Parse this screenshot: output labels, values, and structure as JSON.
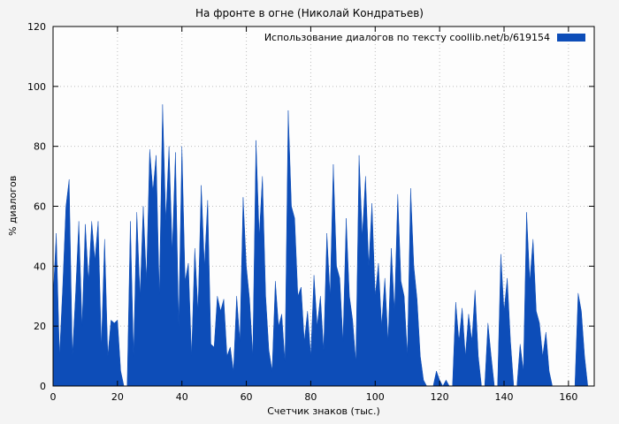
{
  "title": "На фронте в огне (Николай Кондратьев)",
  "legend": {
    "label": "Использование диалогов по тексту coollib.net/b/619154"
  },
  "colors": {
    "series": "#0d4db8",
    "grid": "#bdbdbd",
    "axis": "#000000",
    "page_bg": "#f4f4f4",
    "plot_bg": "#fdfdfd"
  },
  "chart_data": {
    "type": "area",
    "title": "На фронте в огне (Николай Кондратьев)",
    "xlabel": "Счетчик знаков (тыс.)",
    "ylabel": "% диалогов",
    "xlim": [
      0,
      168
    ],
    "ylim": [
      0,
      120
    ],
    "x_ticks": [
      0,
      20,
      40,
      60,
      80,
      100,
      120,
      140,
      160
    ],
    "y_ticks": [
      0,
      20,
      40,
      60,
      80,
      100,
      120
    ],
    "grid": true,
    "legend_position": "top-right",
    "series": [
      {
        "name": "Использование диалогов по тексту coollib.net/b/619154",
        "x_start": 0,
        "x_step": 1,
        "values": [
          29,
          51,
          10,
          33,
          60,
          69,
          10,
          31,
          55,
          20,
          54,
          35,
          55,
          42,
          55,
          13,
          49,
          10,
          22,
          21,
          22,
          5,
          0,
          0,
          55,
          10,
          58,
          30,
          60,
          35,
          79,
          65,
          77,
          30,
          94,
          55,
          80,
          45,
          78,
          20,
          80,
          35,
          41,
          10,
          46,
          25,
          67,
          40,
          62,
          14,
          13,
          30,
          25,
          29,
          10,
          13,
          5,
          30,
          15,
          63,
          40,
          29,
          10,
          82,
          50,
          70,
          30,
          12,
          5,
          35,
          20,
          24,
          8,
          92,
          60,
          56,
          30,
          33,
          15,
          25,
          10,
          37,
          20,
          30,
          12,
          51,
          30,
          74,
          40,
          36,
          15,
          56,
          30,
          22,
          8,
          77,
          50,
          70,
          40,
          61,
          30,
          41,
          20,
          36,
          15,
          46,
          25,
          64,
          35,
          30,
          10,
          66,
          40,
          29,
          10,
          2,
          0,
          0,
          0,
          5,
          2,
          0,
          2,
          0,
          0,
          28,
          15,
          26,
          10,
          24,
          15,
          32,
          10,
          0,
          0,
          21,
          10,
          0,
          0,
          44,
          25,
          36,
          15,
          0,
          0,
          14,
          5,
          58,
          35,
          49,
          25,
          21,
          10,
          18,
          5,
          0,
          0,
          0,
          0,
          0,
          0,
          0,
          0,
          31,
          25,
          10,
          0
        ]
      }
    ]
  }
}
